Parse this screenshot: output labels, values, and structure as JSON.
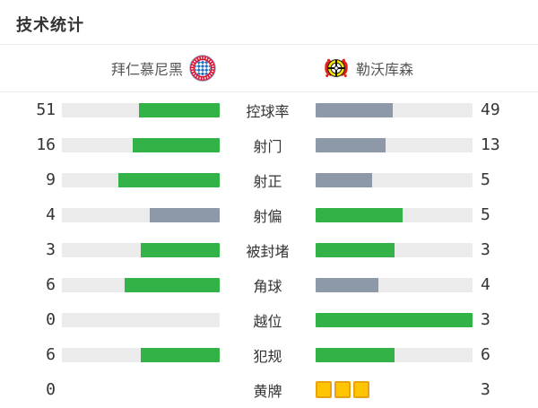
{
  "title": "技术统计",
  "header": {
    "home": {
      "name": "拜仁慕尼黑",
      "logo": "bayern-crest"
    },
    "away": {
      "name": "勒沃库森",
      "logo": "leverkusen-crest"
    }
  },
  "colors": {
    "green": "#33b347",
    "slate": "#8d99a9",
    "track": "#ebebeb",
    "divider": "#ebebeb",
    "text": "#333333",
    "team_text": "#555555",
    "card_fill": "#ffc402",
    "card_border": "#e9a312"
  },
  "stats": [
    {
      "label": "控球率",
      "home": 51,
      "away": 49,
      "display": "bars"
    },
    {
      "label": "射门",
      "home": 16,
      "away": 13,
      "display": "bars"
    },
    {
      "label": "射正",
      "home": 9,
      "away": 5,
      "display": "bars"
    },
    {
      "label": "射偏",
      "home": 4,
      "away": 5,
      "display": "bars"
    },
    {
      "label": "被封堵",
      "home": 3,
      "away": 3,
      "display": "bars"
    },
    {
      "label": "角球",
      "home": 6,
      "away": 4,
      "display": "bars"
    },
    {
      "label": "越位",
      "home": 0,
      "away": 3,
      "display": "bars"
    },
    {
      "label": "犯规",
      "home": 6,
      "away": 6,
      "display": "bars"
    },
    {
      "label": "黄牌",
      "home": 0,
      "away": 3,
      "display": "cards"
    }
  ],
  "chart_data": {
    "type": "bar",
    "orientation": "horizontal-paired",
    "title": "技术统计",
    "categories": [
      "控球率",
      "射门",
      "射正",
      "射偏",
      "被封堵",
      "角球",
      "越位",
      "犯规",
      "黄牌"
    ],
    "series": [
      {
        "name": "拜仁慕尼黑",
        "values": [
          51,
          16,
          9,
          4,
          3,
          6,
          0,
          6,
          0
        ]
      },
      {
        "name": "勒沃库森",
        "values": [
          49,
          13,
          5,
          5,
          3,
          4,
          3,
          6,
          3
        ]
      }
    ],
    "legend_position": "top",
    "grid": false,
    "encoding_notes": "bar width = value / (home+away); higher (or tied) value colored green, lower value slate gray; yellow-card row drawn as card icons instead of a bar"
  }
}
